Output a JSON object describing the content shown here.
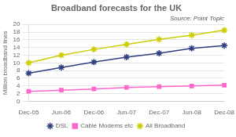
{
  "chart_data": {
    "type": "line",
    "title": "Broadband forecasts for the UK",
    "annotations": [
      "Source: Point Topic"
    ],
    "ylabel": "Million broadband lines",
    "categories": [
      "Dec-05",
      "Jun-06",
      "Dec-06",
      "Jun-07",
      "Dec-07",
      "Jun-08",
      "Dec-08"
    ],
    "series": [
      {
        "name": "DSL",
        "color": "#2F3F7F",
        "marker": "star",
        "values": [
          7.3,
          8.8,
          10.2,
          11.5,
          12.5,
          13.8,
          14.5
        ]
      },
      {
        "name": "Cable Modems etc",
        "color": "#FF66CC",
        "marker": "square",
        "values": [
          2.6,
          2.9,
          3.2,
          3.6,
          3.8,
          4.0,
          4.2
        ]
      },
      {
        "name": "All Broadband",
        "color": "#CCCC00",
        "marker": "star",
        "values": [
          10.0,
          12.0,
          13.5,
          14.8,
          16.1,
          17.2,
          18.5
        ]
      }
    ],
    "ylim": [
      0,
      20
    ],
    "yticks": [
      0,
      2,
      4,
      6,
      8,
      10,
      12,
      14,
      16,
      18,
      20
    ],
    "grid": true,
    "legend": "bottom"
  }
}
